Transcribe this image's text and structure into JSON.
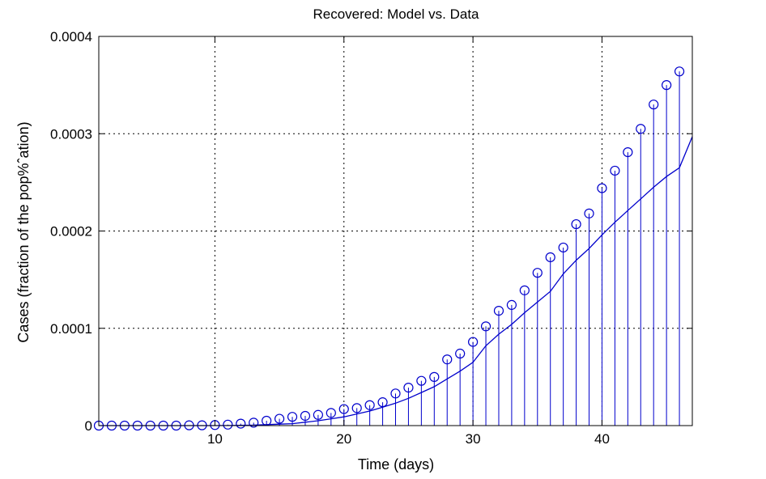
{
  "chart_data": {
    "type": "line",
    "title": "Recovered: Model vs. Data",
    "xlabel": "Time (days)",
    "ylabel": "Cases (fraction of the pop%ˆation)",
    "xlim": [
      1,
      47
    ],
    "ylim": [
      0,
      0.0004
    ],
    "xticks": [
      10,
      20,
      30,
      40
    ],
    "yticks": [
      0,
      0.0001,
      0.0002,
      0.0003,
      0.0004
    ],
    "xtick_labels": [
      "10",
      "20",
      "30",
      "40"
    ],
    "ytick_labels": [
      "0",
      "0.0001",
      "0.0002",
      "0.0003",
      "0.0004"
    ],
    "grid": true,
    "color": "#0000cc",
    "series": [
      {
        "type": "stem",
        "marker": "circle",
        "x": [
          1,
          2,
          3,
          4,
          5,
          6,
          7,
          8,
          9,
          10,
          11,
          12,
          13,
          14,
          15,
          16,
          17,
          18,
          19,
          20,
          21,
          22,
          23,
          24,
          25,
          26,
          27,
          28,
          29,
          30,
          31,
          32,
          33,
          34,
          35,
          36,
          37,
          38,
          39,
          40,
          41,
          42,
          43,
          44,
          45,
          46
        ],
        "values": [
          0,
          0,
          0,
          0,
          0,
          0,
          0,
          3e-07,
          3e-07,
          6e-07,
          1e-06,
          2e-06,
          3e-06,
          5e-06,
          7e-06,
          9e-06,
          1e-05,
          1.1e-05,
          1.3e-05,
          1.7e-05,
          1.8e-05,
          2.1e-05,
          2.4e-05,
          3.3e-05,
          3.9e-05,
          4.6e-05,
          5e-05,
          6.8e-05,
          7.4e-05,
          8.6e-05,
          0.000102,
          0.000118,
          0.000124,
          0.000139,
          0.000157,
          0.000173,
          0.000183,
          0.000207,
          0.000218,
          0.000244,
          0.000262,
          0.000281,
          0.000305,
          0.00033,
          0.00035,
          0.000364
        ]
      },
      {
        "type": "line",
        "x": [
          1,
          3,
          5,
          7,
          9,
          11,
          12,
          13,
          14,
          15,
          16,
          17,
          18,
          19,
          20,
          21,
          22,
          23,
          24,
          25,
          26,
          27,
          28,
          29,
          30,
          31,
          32,
          33,
          34,
          35,
          36,
          37,
          38,
          39,
          40,
          41,
          42,
          43,
          44,
          45,
          46,
          47
        ],
        "values": [
          0,
          0,
          0,
          0,
          0,
          1e-07,
          3e-07,
          5e-07,
          1e-06,
          1.5e-06,
          2e-06,
          3.5e-06,
          5e-06,
          7e-06,
          9e-06,
          1.2e-05,
          1.5e-05,
          1.9e-05,
          2.3e-05,
          2.8e-05,
          3.4e-05,
          4e-05,
          4.8e-05,
          5.6e-05,
          6.5e-05,
          8.2e-05,
          9.4e-05,
          0.000104,
          0.000116,
          0.000127,
          0.000138,
          0.000156,
          0.00017,
          0.000182,
          0.000196,
          0.000209,
          0.000221,
          0.000233,
          0.000245,
          0.000256,
          0.000265,
          0.000297
        ]
      }
    ]
  }
}
